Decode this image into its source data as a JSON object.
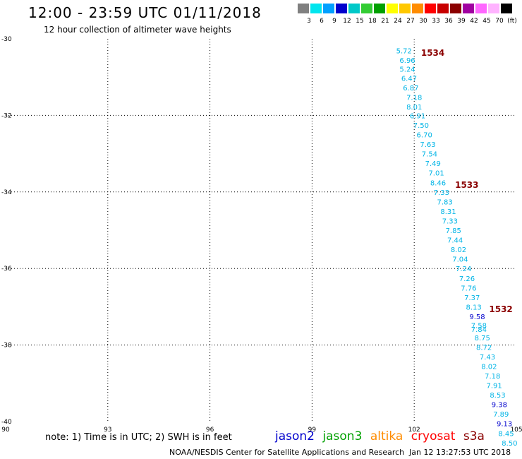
{
  "header": {
    "title": "12:00 - 23:59 UTC 01/11/2018",
    "subtitle": "12 hour collection of altimeter wave heights"
  },
  "colorbar": {
    "colors": [
      "#808080",
      "#00e5ee",
      "#00a0ff",
      "#0000cd",
      "#00c8c8",
      "#33cc33",
      "#00a000",
      "#ffff00",
      "#ffc800",
      "#ff8c00",
      "#ff0000",
      "#c80000",
      "#8b0000",
      "#a000a0",
      "#ff66ff",
      "#ffb3ff",
      "#000000"
    ],
    "labels": [
      "3",
      "6",
      "9",
      "12",
      "15",
      "18",
      "21",
      "24",
      "27",
      "30",
      "33",
      "36",
      "39",
      "42",
      "45",
      "70",
      "(ft)"
    ]
  },
  "map": {
    "lon_ticks": [
      "90",
      "93",
      "96",
      "99",
      "102",
      "105"
    ],
    "lat_ticks": [
      "-30",
      "-32",
      "-34",
      "-36",
      "-38",
      "-40"
    ],
    "lon_range": [
      90,
      105
    ],
    "lat_range": [
      -30,
      -40
    ],
    "grid": true
  },
  "track_labels": [
    {
      "text": "1534",
      "lon": 102.2,
      "lat": -30.35,
      "color": "#8b0000"
    },
    {
      "text": "1533",
      "lon": 103.2,
      "lat": -33.8,
      "color": "#8b0000"
    },
    {
      "text": "1532",
      "lon": 104.2,
      "lat": -37.05,
      "color": "#8b0000"
    }
  ],
  "observations": [
    {
      "value": "5.72",
      "lon": 101.7,
      "lat": -30.3,
      "color": "#00b4e6"
    },
    {
      "value": "6.96",
      "lon": 101.8,
      "lat": -30.55,
      "color": "#00b4e6"
    },
    {
      "value": "5.24",
      "lon": 101.8,
      "lat": -30.78,
      "color": "#00b4e6"
    },
    {
      "value": "6.47",
      "lon": 101.85,
      "lat": -31.02,
      "color": "#00b4e6"
    },
    {
      "value": "6.87",
      "lon": 101.9,
      "lat": -31.27,
      "color": "#00b4e6"
    },
    {
      "value": "7.18",
      "lon": 102.0,
      "lat": -31.52,
      "color": "#00b4e6"
    },
    {
      "value": "8.01",
      "lon": 102.0,
      "lat": -31.77,
      "color": "#00b4e6"
    },
    {
      "value": "6.91",
      "lon": 102.1,
      "lat": -32.0,
      "color": "#00b4e6"
    },
    {
      "value": "7.50",
      "lon": 102.2,
      "lat": -32.25,
      "color": "#00b4e6"
    },
    {
      "value": "6.70",
      "lon": 102.3,
      "lat": -32.5,
      "color": "#00b4e6"
    },
    {
      "value": "7.63",
      "lon": 102.4,
      "lat": -32.75,
      "color": "#00b4e6"
    },
    {
      "value": "7.54",
      "lon": 102.45,
      "lat": -33.0,
      "color": "#00b4e6"
    },
    {
      "value": "7.49",
      "lon": 102.55,
      "lat": -33.25,
      "color": "#00b4e6"
    },
    {
      "value": "7.01",
      "lon": 102.65,
      "lat": -33.5,
      "color": "#00b4e6"
    },
    {
      "value": "8.46",
      "lon": 102.7,
      "lat": -33.75,
      "color": "#00b4e6"
    },
    {
      "value": "7.33",
      "lon": 102.8,
      "lat": -34.0,
      "color": "#00b4e6"
    },
    {
      "value": "7.83",
      "lon": 102.9,
      "lat": -34.25,
      "color": "#00b4e6"
    },
    {
      "value": "8.31",
      "lon": 103.0,
      "lat": -34.5,
      "color": "#00b4e6"
    },
    {
      "value": "7.33",
      "lon": 103.05,
      "lat": -34.75,
      "color": "#00b4e6"
    },
    {
      "value": "7.85",
      "lon": 103.15,
      "lat": -35.0,
      "color": "#00b4e6"
    },
    {
      "value": "7.44",
      "lon": 103.2,
      "lat": -35.25,
      "color": "#00b4e6"
    },
    {
      "value": "8.02",
      "lon": 103.3,
      "lat": -35.5,
      "color": "#00b4e6"
    },
    {
      "value": "7.04",
      "lon": 103.35,
      "lat": -35.75,
      "color": "#00b4e6"
    },
    {
      "value": "7.24",
      "lon": 103.45,
      "lat": -36.0,
      "color": "#00b4e6"
    },
    {
      "value": "7.26",
      "lon": 103.55,
      "lat": -36.25,
      "color": "#00b4e6"
    },
    {
      "value": "7.76",
      "lon": 103.6,
      "lat": -36.5,
      "color": "#00b4e6"
    },
    {
      "value": "7.37",
      "lon": 103.7,
      "lat": -36.75,
      "color": "#00b4e6"
    },
    {
      "value": "8.13",
      "lon": 103.75,
      "lat": -37.0,
      "color": "#00b4e6"
    },
    {
      "value": "9.58",
      "lon": 103.85,
      "lat": -37.25,
      "color": "#0000cd"
    },
    {
      "value": "7.58",
      "lon": 103.9,
      "lat": -37.48,
      "color": "#00b4e6"
    },
    {
      "value": "7.84",
      "lon": 103.9,
      "lat": -37.58,
      "color": "#00b4e6"
    },
    {
      "value": "8.75",
      "lon": 104.0,
      "lat": -37.8,
      "color": "#00b4e6"
    },
    {
      "value": "8.72",
      "lon": 104.05,
      "lat": -38.05,
      "color": "#00b4e6"
    },
    {
      "value": "7.43",
      "lon": 104.15,
      "lat": -38.3,
      "color": "#00b4e6"
    },
    {
      "value": "8.02",
      "lon": 104.2,
      "lat": -38.55,
      "color": "#00b4e6"
    },
    {
      "value": "7.18",
      "lon": 104.3,
      "lat": -38.8,
      "color": "#00b4e6"
    },
    {
      "value": "7.91",
      "lon": 104.35,
      "lat": -39.05,
      "color": "#00b4e6"
    },
    {
      "value": "8.53",
      "lon": 104.45,
      "lat": -39.3,
      "color": "#00b4e6"
    },
    {
      "value": "9.38",
      "lon": 104.5,
      "lat": -39.55,
      "color": "#0000cd"
    },
    {
      "value": "7.89",
      "lon": 104.55,
      "lat": -39.8,
      "color": "#00b4e6"
    },
    {
      "value": "9.13",
      "lon": 104.65,
      "lat": -40.05,
      "color": "#0000cd"
    },
    {
      "value": "8.45",
      "lon": 104.7,
      "lat": -40.3,
      "color": "#00b4e6"
    },
    {
      "value": "8.50",
      "lon": 104.8,
      "lat": -40.55,
      "color": "#00b4e6"
    }
  ],
  "note": "note: 1) Time is in UTC; 2) SWH is in feet",
  "legend": [
    {
      "label": "jason2",
      "color": "#0000cd"
    },
    {
      "label": "jason3",
      "color": "#00a000"
    },
    {
      "label": "altika",
      "color": "#ff8c00"
    },
    {
      "label": "cryosat",
      "color": "#ff0000"
    },
    {
      "label": "s3a",
      "color": "#8b0000"
    }
  ],
  "footer": "NOAA/NESDIS Center for Satellite Applications and Research",
  "timestamp": "Jan 12 13:27:53 UTC 2018"
}
